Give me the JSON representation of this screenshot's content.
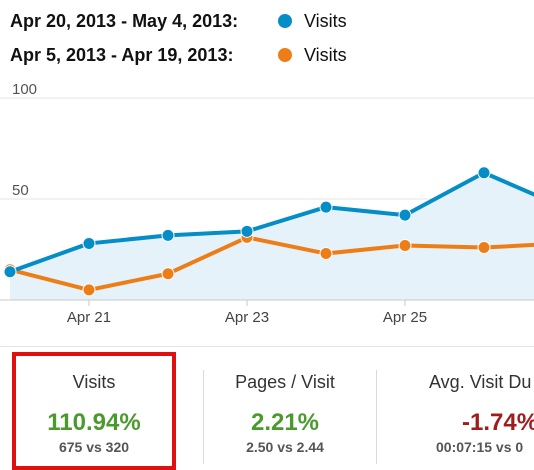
{
  "legend": [
    {
      "range": "Apr 20, 2013 - May 4, 2013:",
      "name": "Visits",
      "color": "#058dc7"
    },
    {
      "range": "Apr 5, 2013 - Apr 19, 2013:",
      "name": "Visits",
      "color": "#ed7e17"
    }
  ],
  "chart_data": {
    "type": "line",
    "y_ticks": [
      "100",
      "50"
    ],
    "x_ticks": [
      "Apr 21",
      "Apr 23",
      "Apr 25"
    ],
    "ylim": [
      0,
      100
    ],
    "grid": true,
    "series": [
      {
        "name": "Visits",
        "color": "#058dc7",
        "fill": "#e6f2f9",
        "values": [
          14,
          28,
          32,
          34,
          46,
          42,
          63,
          46
        ]
      },
      {
        "name": "Visits",
        "color": "#ed7e17",
        "values": [
          15,
          5,
          13,
          31,
          23,
          27,
          26,
          28
        ]
      }
    ]
  },
  "metrics": [
    {
      "label": "Visits",
      "pct": "110.94%",
      "cmp": "675 vs 320",
      "color": "#4a9a2e"
    },
    {
      "label": "Pages / Visit",
      "pct": "2.21%",
      "cmp": "2.50 vs 2.44",
      "color": "#4a9a2e"
    },
    {
      "label": "Avg. Visit Du",
      "pct": "-1.74%",
      "cmp": "00:07:15 vs 0",
      "color": "#a11d1d"
    }
  ]
}
